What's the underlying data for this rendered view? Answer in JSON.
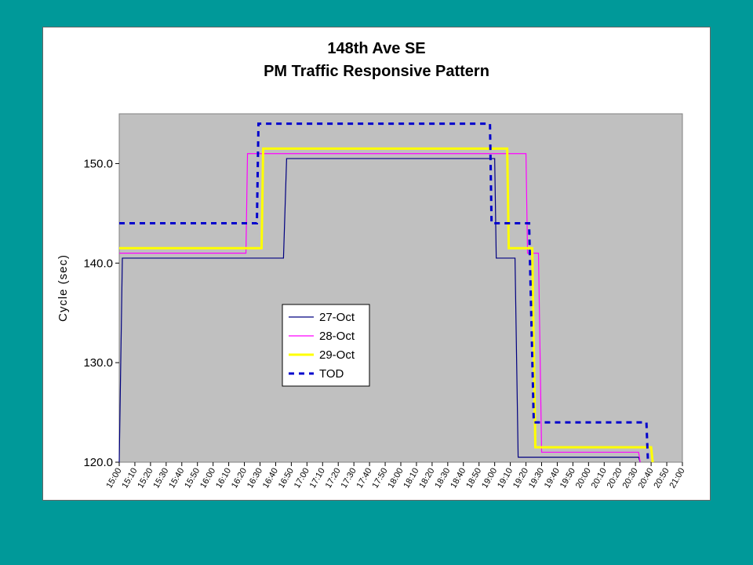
{
  "chart_data": {
    "type": "line",
    "title": "148th Ave SE",
    "subtitle": "PM Traffic Responsive Pattern",
    "ylabel": "Cycle (sec)",
    "xlabel": "",
    "ylim": [
      120,
      155
    ],
    "y_ticks": [
      "120.0",
      "130.0",
      "140.0",
      "150.0"
    ],
    "y_tick_values": [
      120,
      130,
      140,
      150
    ],
    "x_ticks": [
      "15:00",
      "15:10",
      "15:20",
      "15:30",
      "15:40",
      "15:50",
      "16:00",
      "16:10",
      "16:20",
      "16:30",
      "16:40",
      "16:50",
      "17:00",
      "17:10",
      "17:20",
      "17:30",
      "17:40",
      "17:50",
      "18:00",
      "18:10",
      "18:20",
      "18:30",
      "18:40",
      "18:50",
      "19:00",
      "19:10",
      "19:20",
      "19:30",
      "19:40",
      "19:50",
      "20:00",
      "20:10",
      "20:20",
      "20:30",
      "20:40",
      "20:50",
      "21:00"
    ],
    "plot_background": "#c0c0c0",
    "grid": false,
    "legend_position": "center-left",
    "series": [
      {
        "name": "27-Oct",
        "color": "#000080",
        "style": "solid",
        "points": [
          [
            "15:00",
            120
          ],
          [
            "15:02",
            140.5
          ],
          [
            "16:45",
            140.5
          ],
          [
            "16:47",
            150.5
          ],
          [
            "19:00",
            150.5
          ],
          [
            "19:01",
            140.5
          ],
          [
            "19:13",
            140.5
          ],
          [
            "19:15",
            120.5
          ],
          [
            "20:32",
            120.5
          ],
          [
            "20:33",
            120
          ]
        ]
      },
      {
        "name": "28-Oct",
        "color": "#ff00ff",
        "style": "solid",
        "points": [
          [
            "15:00",
            141
          ],
          [
            "16:21",
            141
          ],
          [
            "16:22",
            151
          ],
          [
            "19:20",
            151
          ],
          [
            "19:21",
            141
          ],
          [
            "19:28",
            141
          ],
          [
            "19:30",
            121
          ],
          [
            "20:32",
            121
          ],
          [
            "20:33",
            120
          ]
        ]
      },
      {
        "name": "29-Oct",
        "color": "#ffff00",
        "style": "solid",
        "points": [
          [
            "15:00",
            141.5
          ],
          [
            "16:31",
            141.5
          ],
          [
            "16:32",
            151.5
          ],
          [
            "19:08",
            151.5
          ],
          [
            "19:09",
            141.5
          ],
          [
            "19:24",
            141.5
          ],
          [
            "19:26",
            121.5
          ],
          [
            "20:40",
            121.5
          ],
          [
            "20:41",
            120
          ]
        ]
      },
      {
        "name": "TOD",
        "color": "#0000cc",
        "style": "dashed",
        "points": [
          [
            "15:00",
            144
          ],
          [
            "16:28",
            144
          ],
          [
            "16:29",
            154
          ],
          [
            "18:57",
            154
          ],
          [
            "18:58",
            144
          ],
          [
            "19:22",
            144
          ],
          [
            "19:25",
            124
          ],
          [
            "20:37",
            124
          ],
          [
            "20:38",
            120
          ]
        ]
      }
    ]
  }
}
